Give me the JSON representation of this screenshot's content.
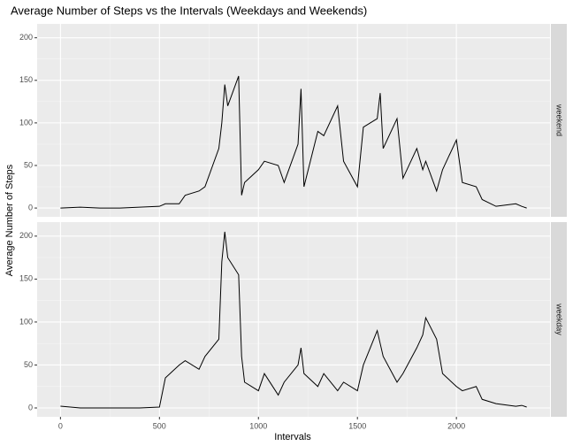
{
  "chart_data": {
    "type": "line",
    "title": "Average Number of Steps vs the Intervals (Weekdays and Weekends)",
    "xlabel": "Intervals",
    "ylabel": "Average Number of Steps",
    "x": [
      0,
      100,
      200,
      300,
      400,
      500,
      530,
      600,
      630,
      700,
      730,
      800,
      815,
      830,
      845,
      900,
      915,
      930,
      1000,
      1030,
      1100,
      1130,
      1200,
      1215,
      1230,
      1300,
      1330,
      1400,
      1430,
      1500,
      1530,
      1600,
      1615,
      1630,
      1700,
      1730,
      1800,
      1830,
      1845,
      1900,
      1930,
      2000,
      2030,
      2100,
      2130,
      2200,
      2300,
      2330,
      2355
    ],
    "series": [
      {
        "name": "weekend",
        "color": "#000000",
        "values": [
          0,
          1,
          0,
          0,
          1,
          2,
          5,
          5,
          15,
          20,
          25,
          70,
          100,
          145,
          120,
          155,
          15,
          30,
          45,
          55,
          50,
          30,
          75,
          140,
          25,
          90,
          85,
          120,
          55,
          25,
          95,
          105,
          135,
          70,
          105,
          35,
          70,
          45,
          55,
          20,
          45,
          80,
          30,
          25,
          10,
          2,
          5,
          2,
          0
        ]
      },
      {
        "name": "weekday",
        "color": "#000000",
        "values": [
          2,
          0,
          0,
          0,
          0,
          1,
          35,
          50,
          55,
          45,
          60,
          80,
          170,
          205,
          175,
          155,
          60,
          30,
          20,
          40,
          15,
          30,
          50,
          70,
          40,
          25,
          40,
          20,
          30,
          20,
          50,
          90,
          75,
          60,
          30,
          40,
          70,
          85,
          105,
          80,
          40,
          25,
          20,
          25,
          10,
          5,
          2,
          3,
          1
        ]
      }
    ],
    "xlim": [
      -117.75,
      2472.75
    ],
    "xticks": [
      0,
      500,
      1000,
      1500,
      2000
    ],
    "ylim": [
      -10.3,
      216.3
    ],
    "yticks": [
      0,
      50,
      100,
      150,
      200
    ],
    "grid": true
  }
}
